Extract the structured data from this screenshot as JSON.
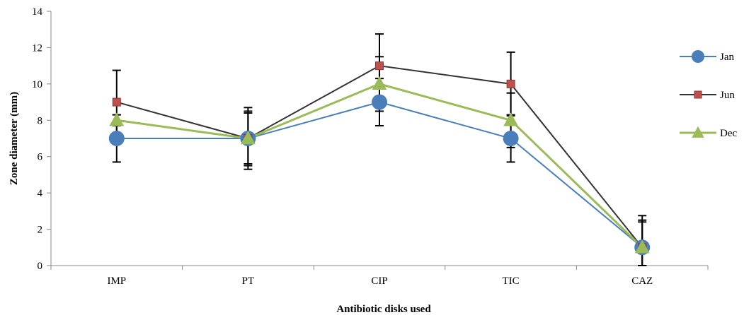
{
  "chart_data": {
    "type": "line",
    "xlabel": "Antibiotic disks used",
    "ylabel": "Zone diameter (mm)",
    "categories": [
      "IMP",
      "PT",
      "CIP",
      "TIC",
      "CAZ"
    ],
    "ylim": [
      0,
      14
    ],
    "yticks": [
      0,
      2,
      4,
      6,
      8,
      10,
      12,
      14
    ],
    "grid": false,
    "legend_position": "right",
    "series": [
      {
        "name": "Jan",
        "color": "#4a7ebb",
        "marker": "circle",
        "values": [
          7,
          7,
          9,
          7,
          1
        ],
        "error": [
          1.3,
          1.4,
          1.3,
          1.3,
          1.4
        ]
      },
      {
        "name": "Jun",
        "color": "#333333",
        "marker_color": "#c0504d",
        "marker": "square",
        "values": [
          9,
          7,
          11,
          10,
          1
        ],
        "error": [
          1.75,
          1.7,
          1.75,
          1.75,
          1.75
        ]
      },
      {
        "name": "Dec",
        "color": "#9bbb59",
        "marker": "triangle",
        "values": [
          8,
          7,
          10,
          8,
          1
        ],
        "error": [
          0.3,
          1.5,
          1.5,
          1.5,
          1.5
        ]
      }
    ]
  }
}
